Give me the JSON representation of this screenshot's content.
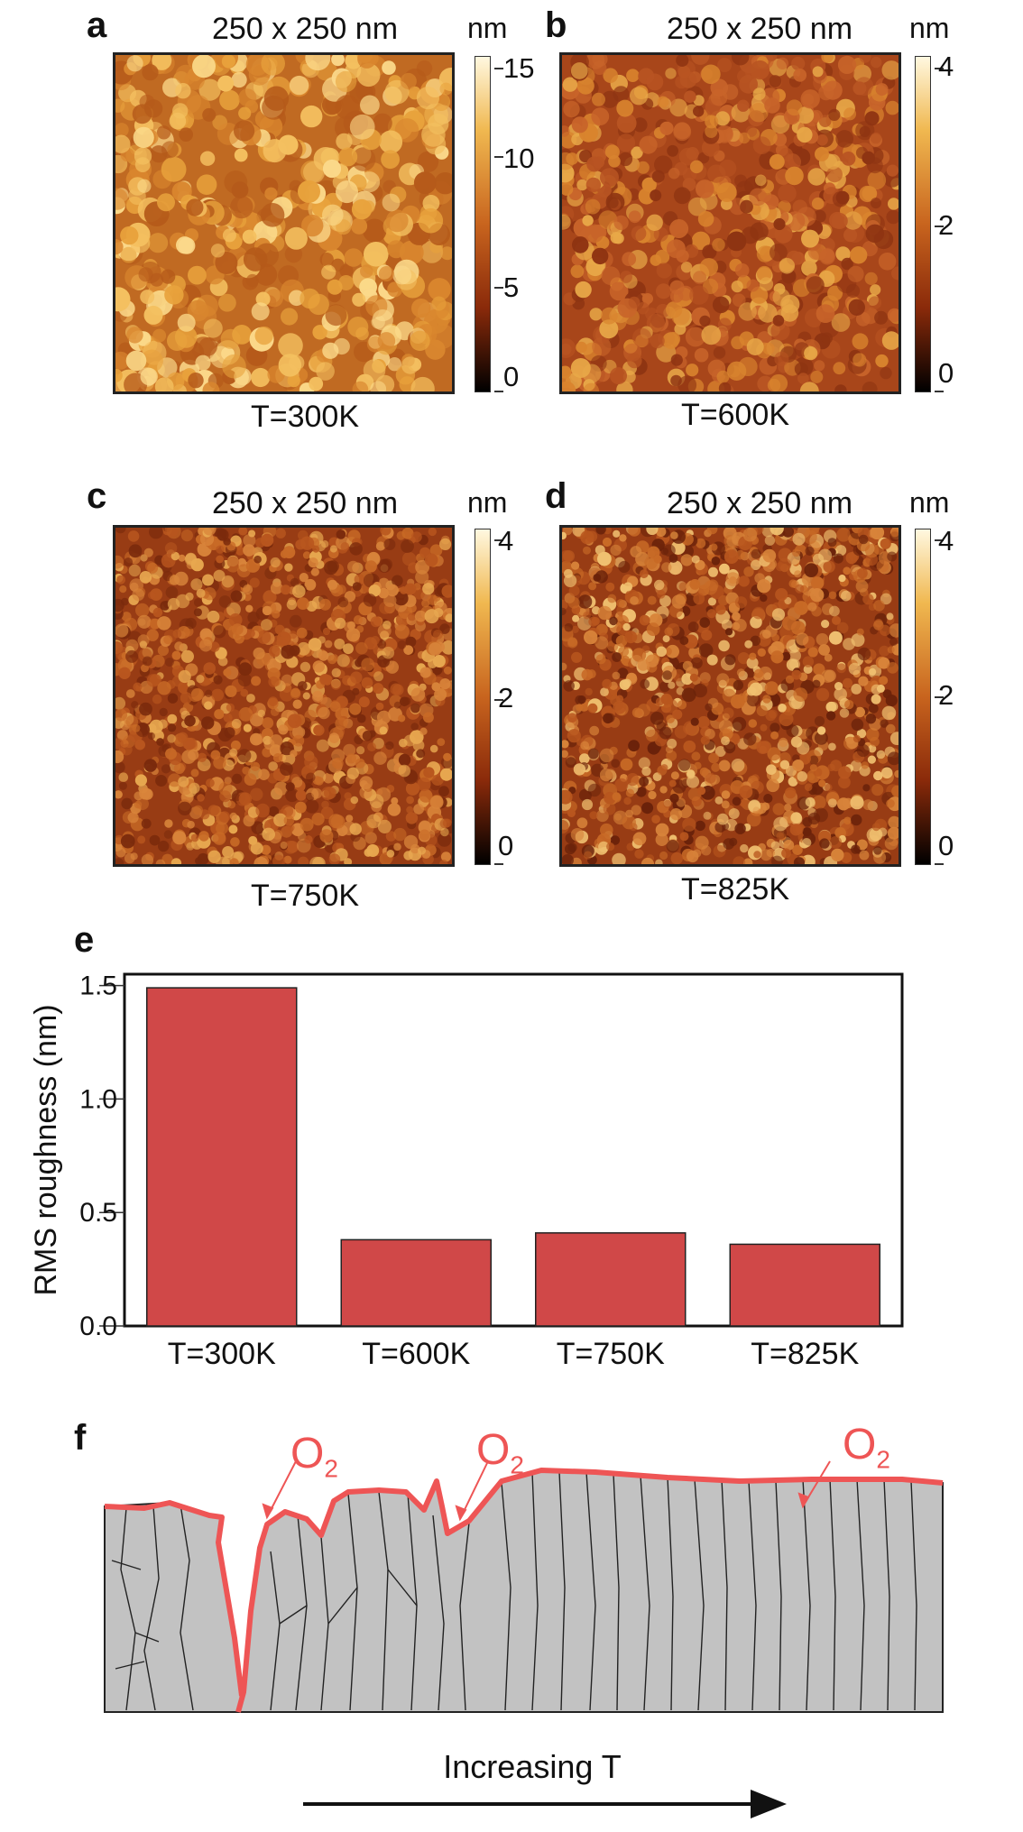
{
  "panels": [
    {
      "label": "a",
      "title": "250 x 250 nm",
      "unit": "nm",
      "caption": "T=300K",
      "ticks": [
        "15",
        "10",
        "5",
        "0"
      ],
      "max": 15
    },
    {
      "label": "b",
      "title": "250 x 250 nm",
      "unit": "nm",
      "caption": "T=600K",
      "ticks": [
        "4",
        "2",
        "0"
      ],
      "max": 4
    },
    {
      "label": "c",
      "title": "250 x 250 nm",
      "unit": "nm",
      "caption": "T=750K",
      "ticks": [
        "4",
        "2",
        "0"
      ],
      "max": 4
    },
    {
      "label": "d",
      "title": "250 x 250 nm",
      "unit": "nm",
      "caption": "T=825K",
      "ticks": [
        "4",
        "2",
        "0"
      ],
      "max": 4
    }
  ],
  "chart_data": {
    "label": "e",
    "type": "bar",
    "categories": [
      "T=300K",
      "T=600K",
      "T=750K",
      "T=825K"
    ],
    "values": [
      1.49,
      0.38,
      0.41,
      0.36
    ],
    "ylabel": "RMS roughness (nm)",
    "ylim": [
      0,
      1.55
    ],
    "yticks": [
      "1.5",
      "1.0",
      "0.5",
      "0.0"
    ],
    "ytick_values": [
      1.5,
      1.0,
      0.5,
      0.0
    ],
    "bar_color": "#d04848"
  },
  "schematic": {
    "label": "f",
    "o2_labels": [
      "O",
      "O",
      "O"
    ],
    "o2_subscript": "2",
    "arrow_text": "Increasing T",
    "oxide_color": "#ee5555",
    "film_color": "#c2c2c2"
  }
}
